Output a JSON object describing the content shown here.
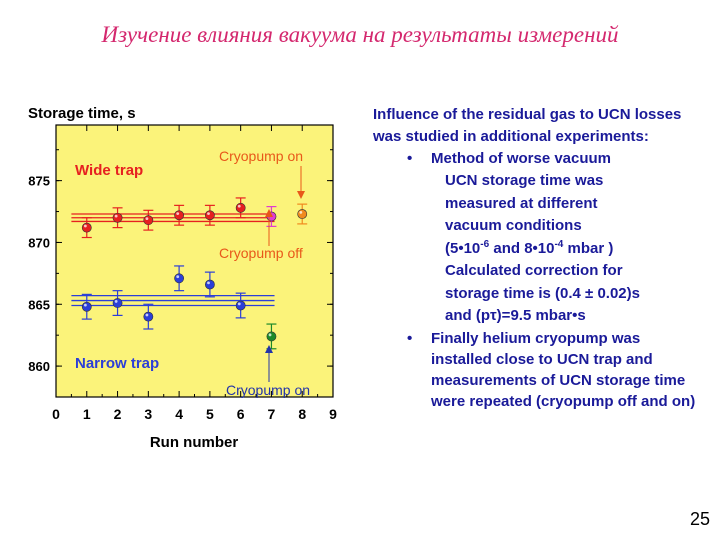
{
  "slide": {
    "title": "Изучение влияния вакуума на результаты измерений",
    "page_number": "25"
  },
  "text": {
    "intro": "Influence of the residual gas to UCN losses was studied in additional experiments:",
    "bullet_char": "•",
    "bullet1": {
      "title": "Method of worse vacuum",
      "line1": "UCN storage time was",
      "line2": "measured at different",
      "line3": "vacuum conditions",
      "line4_pre": "(5•10",
      "line4_exp1": "-6",
      "line4_mid": " and 8•10",
      "line4_exp2": "-4",
      "line4_post": " mbar )",
      "line5": "Calculated correction for",
      "line6": "storage time is (0.4 ± 0.02)s",
      "line7": "and (pτ)=9.5 mbar•s"
    },
    "bullet2": "Finally helium cryopump was installed close to UCN trap and measurements of UCN storage time were repeated (cryopump off and on)"
  },
  "chart_data": {
    "type": "scatter",
    "ylabel": "Storage time, s",
    "xlabel": "Run number",
    "xlim": [
      0,
      9
    ],
    "ylim": [
      857.5,
      879.5
    ],
    "xticks": [
      "0",
      "1",
      "2",
      "3",
      "4",
      "5",
      "6",
      "7",
      "8",
      "9"
    ],
    "yticks": [
      "860",
      "865",
      "870",
      "875"
    ],
    "colors": {
      "background": "#fbf37a",
      "red": "#e62020",
      "magenta": "#e03cd0",
      "orange": "#f08a1e",
      "blue": "#2b3ed8",
      "green": "#1d8a2a",
      "annotation": "#e8581a",
      "annotation_blue": "#2233aa"
    },
    "series": [
      {
        "color_key": "red",
        "points": [
          {
            "x": 1,
            "y": 871.2,
            "err": 0.8
          },
          {
            "x": 2,
            "y": 872.0,
            "err": 0.8
          },
          {
            "x": 3,
            "y": 871.8,
            "err": 0.8
          },
          {
            "x": 4,
            "y": 872.2,
            "err": 0.8
          },
          {
            "x": 5,
            "y": 872.2,
            "err": 0.8
          },
          {
            "x": 6,
            "y": 872.8,
            "err": 0.8
          }
        ]
      },
      {
        "color_key": "magenta",
        "points": [
          {
            "x": 7,
            "y": 872.1,
            "err": 0.8
          }
        ]
      },
      {
        "color_key": "orange",
        "points": [
          {
            "x": 8,
            "y": 872.3,
            "err": 0.8
          }
        ]
      },
      {
        "color_key": "blue",
        "points": [
          {
            "x": 1,
            "y": 864.8,
            "err": 1.0
          },
          {
            "x": 2,
            "y": 865.1,
            "err": 1.0
          },
          {
            "x": 3,
            "y": 864.0,
            "err": 1.0
          },
          {
            "x": 4,
            "y": 867.1,
            "err": 1.0
          },
          {
            "x": 5,
            "y": 866.6,
            "err": 1.0
          },
          {
            "x": 6,
            "y": 864.9,
            "err": 1.0
          }
        ]
      },
      {
        "color_key": "green",
        "points": [
          {
            "x": 7,
            "y": 862.4,
            "err": 1.0
          }
        ]
      }
    ],
    "fit_lines": [
      {
        "color_key": "red",
        "y": [
          872.3,
          872.0,
          871.7
        ]
      },
      {
        "color_key": "blue",
        "y": [
          865.7,
          865.3,
          864.9
        ]
      }
    ],
    "annotations": {
      "wide_trap": "Wide trap",
      "narrow_trap": "Narrow trap",
      "cryopump_on_top": "Cryopump on",
      "cryopump_off": "Cryopump off",
      "cryopump_on_bottom": "Cryopump on"
    }
  }
}
